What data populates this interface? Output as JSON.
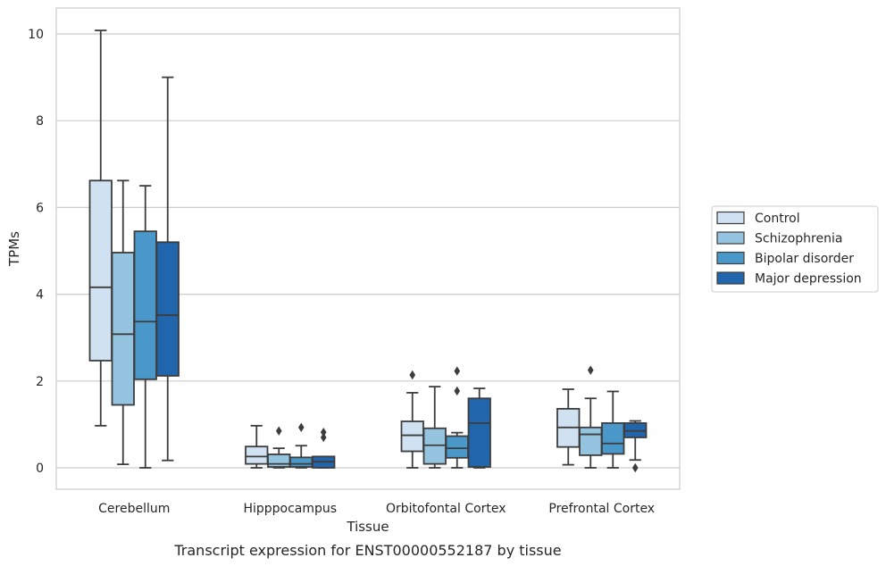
{
  "chart_data": {
    "type": "boxplot",
    "title": "Transcript expression for ENST00000552187 by tissue",
    "xlabel": "Tissue",
    "ylabel": "TPMs",
    "ylim": [
      -0.48,
      10.6
    ],
    "yticks": [
      0,
      2,
      4,
      6,
      8,
      10
    ],
    "grid": "horizontal",
    "legend_position": "right",
    "categories": [
      "Cerebellum",
      "Hipppocampus",
      "Orbitofontal Cortex",
      "Prefrontal Cortex"
    ],
    "series": [
      {
        "name": "Control",
        "color": "#d0e1f2",
        "boxes": [
          {
            "whislo": 0.97,
            "q1": 2.47,
            "med": 4.16,
            "q3": 6.62,
            "whishi": 10.08,
            "fliers": []
          },
          {
            "whislo": 0.0,
            "q1": 0.09,
            "med": 0.26,
            "q3": 0.49,
            "whishi": 0.97,
            "fliers": []
          },
          {
            "whislo": 0.0,
            "q1": 0.38,
            "med": 0.75,
            "q3": 1.07,
            "whishi": 1.73,
            "fliers": [
              2.14
            ]
          },
          {
            "whislo": 0.07,
            "q1": 0.48,
            "med": 0.93,
            "q3": 1.36,
            "whishi": 1.81,
            "fliers": []
          }
        ]
      },
      {
        "name": "Schizophrenia",
        "color": "#94c4df",
        "boxes": [
          {
            "whislo": 0.08,
            "q1": 1.45,
            "med": 3.08,
            "q3": 4.96,
            "whishi": 6.62,
            "fliers": []
          },
          {
            "whislo": 0.0,
            "q1": 0.02,
            "med": 0.09,
            "q3": 0.31,
            "whishi": 0.45,
            "fliers": [
              0.85
            ]
          },
          {
            "whislo": 0.0,
            "q1": 0.09,
            "med": 0.52,
            "q3": 0.91,
            "whishi": 1.87,
            "fliers": []
          },
          {
            "whislo": 0.0,
            "q1": 0.29,
            "med": 0.77,
            "q3": 0.93,
            "whishi": 1.6,
            "fliers": [
              2.25
            ]
          }
        ]
      },
      {
        "name": "Bipolar disorder",
        "color": "#4a98c9",
        "boxes": [
          {
            "whislo": 0.0,
            "q1": 2.04,
            "med": 3.37,
            "q3": 5.45,
            "whishi": 6.5,
            "fliers": []
          },
          {
            "whislo": 0.0,
            "q1": 0.02,
            "med": 0.09,
            "q3": 0.24,
            "whishi": 0.51,
            "fliers": [
              0.93
            ]
          },
          {
            "whislo": 0.0,
            "q1": 0.23,
            "med": 0.45,
            "q3": 0.73,
            "whishi": 0.81,
            "fliers": [
              1.77,
              2.23
            ]
          },
          {
            "whislo": 0.0,
            "q1": 0.32,
            "med": 0.56,
            "q3": 1.03,
            "whishi": 1.76,
            "fliers": []
          }
        ]
      },
      {
        "name": "Major depression",
        "color": "#2166ac",
        "boxes": [
          {
            "whislo": 0.17,
            "q1": 2.12,
            "med": 3.52,
            "q3": 5.2,
            "whishi": 9.0,
            "fliers": []
          },
          {
            "whislo": 0.0,
            "q1": 0.0,
            "med": 0.14,
            "q3": 0.26,
            "whishi": 0.26,
            "fliers": [
              0.7,
              0.82
            ]
          },
          {
            "whislo": 0.0,
            "q1": 0.02,
            "med": 1.03,
            "q3": 1.6,
            "whishi": 1.83,
            "fliers": []
          },
          {
            "whislo": 0.18,
            "q1": 0.7,
            "med": 0.85,
            "q3": 1.03,
            "whishi": 1.08,
            "fliers": [
              0.0
            ]
          }
        ]
      }
    ]
  }
}
